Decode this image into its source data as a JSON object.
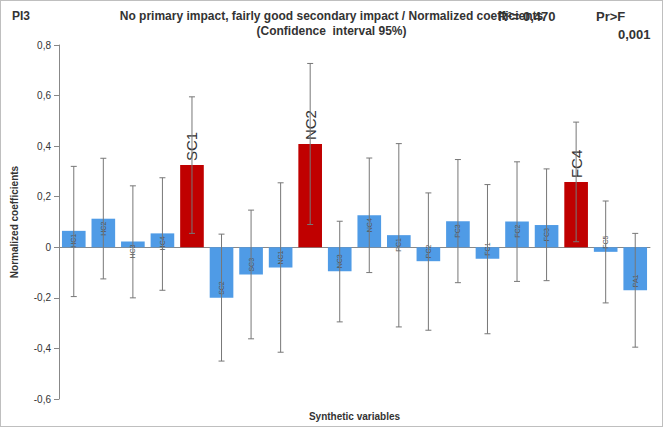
{
  "chart_data": {
    "type": "bar",
    "title": "No primary impact, fairly good secondary impact / Normalized coefficients",
    "subtitle": "(Confidence  interval 95%)",
    "annotations": [
      "PI3",
      "R²= 0,470",
      "Pr>F",
      "0,001"
    ],
    "x_label": "Synthetic variables",
    "y_label": "Normalized coefficients",
    "categories": [
      "HC1",
      "HC2",
      "HC3",
      "HC4",
      "SC1",
      "SC2",
      "SC3",
      "NC1",
      "NC2",
      "NC3",
      "NC4",
      "PC1",
      "PC2",
      "PC3",
      "FC1",
      "FC2",
      "FC3",
      "FC4",
      "FC5",
      "PA1"
    ],
    "values": [
      0.065,
      0.113,
      0.023,
      0.055,
      0.325,
      -0.2,
      -0.108,
      -0.08,
      0.408,
      -0.095,
      0.127,
      0.048,
      -0.055,
      0.103,
      -0.045,
      0.102,
      0.088,
      0.258,
      -0.018,
      -0.17
    ],
    "ci_low": [
      -0.195,
      -0.125,
      -0.2,
      -0.17,
      0.055,
      -0.45,
      -0.362,
      -0.415,
      0.09,
      -0.295,
      -0.1,
      -0.315,
      -0.328,
      -0.14,
      -0.342,
      -0.135,
      -0.132,
      0.022,
      -0.22,
      -0.395
    ],
    "ci_high": [
      0.32,
      0.352,
      0.243,
      0.275,
      0.595,
      0.052,
      0.147,
      0.255,
      0.727,
      0.103,
      0.353,
      0.41,
      0.215,
      0.347,
      0.248,
      0.338,
      0.31,
      0.495,
      0.183,
      0.055
    ],
    "color": "#4f9be6",
    "colors": [
      "#4f9be6",
      "#4f9be6",
      "#4f9be6",
      "#4f9be6",
      "#c00000",
      "#4f9be6",
      "#4f9be6",
      "#4f9be6",
      "#c00000",
      "#4f9be6",
      "#4f9be6",
      "#4f9be6",
      "#4f9be6",
      "#4f9be6",
      "#4f9be6",
      "#4f9be6",
      "#4f9be6",
      "#c00000",
      "#4f9be6",
      "#4f9be6"
    ],
    "ylim": [
      -0.6,
      0.8
    ],
    "yticks": [
      {
        "value": -0.6,
        "label": "-0,6"
      },
      {
        "value": -0.4,
        "label": "-0,4"
      },
      {
        "value": -0.2,
        "label": "-0,2"
      },
      0,
      {
        "value": 0.2,
        "label": "0,2"
      },
      {
        "value": 0.4,
        "label": "0,4"
      },
      {
        "value": 0.6,
        "label": "0,6"
      },
      {
        "value": 0.8,
        "label": "0,8"
      }
    ],
    "grid": false,
    "tick_labels": "y"
  }
}
